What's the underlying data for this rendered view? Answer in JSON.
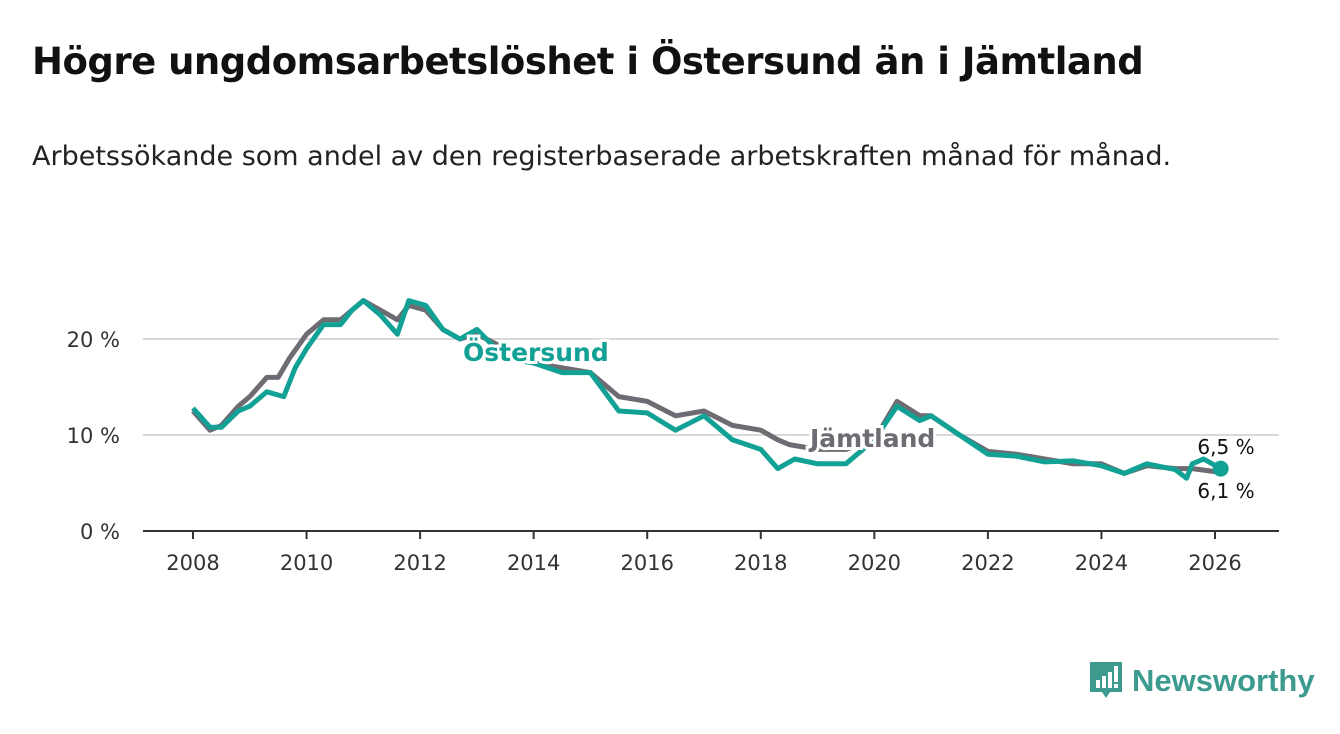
{
  "title": "Högre ungdomsarbetslöshet i Östersund än i Jämtland",
  "subtitle": "Arbetssökande som andel av den registerbaserade arbetskraften månad för månad.",
  "brand": "Newsworthy",
  "colors": {
    "ostersund": "#12a195",
    "jamtland": "#6e6b72",
    "grid": "#d9d9d9",
    "brand": "#3d9a8f"
  },
  "chart_data": {
    "type": "line",
    "title": "Högre ungdomsarbetslöshet i Östersund än i Jämtland",
    "xlabel": "",
    "ylabel": "",
    "xlim": [
      2007.5,
      2027.1
    ],
    "ylim": [
      0,
      25
    ],
    "x_ticks": [
      2008,
      2010,
      2012,
      2014,
      2016,
      2018,
      2020,
      2022,
      2024,
      2026
    ],
    "x_tick_labels": [
      "2008",
      "2010",
      "2012",
      "2014",
      "2016",
      "2018",
      "2020",
      "2022",
      "2024",
      "2026"
    ],
    "y_ticks": [
      0,
      10,
      20
    ],
    "y_tick_labels": [
      "0 %",
      "10 %",
      "20 %"
    ],
    "grid": true,
    "series": [
      {
        "name": "Jämtland",
        "end_label": "6,1 %",
        "x": [
          2008.0,
          2008.3,
          2008.5,
          2008.8,
          2009.0,
          2009.3,
          2009.5,
          2009.7,
          2010.0,
          2010.3,
          2010.6,
          2010.8,
          2011.0,
          2011.3,
          2011.6,
          2011.8,
          2012.1,
          2012.4,
          2012.7,
          2013.0,
          2013.5,
          2014.0,
          2014.5,
          2015.0,
          2015.5,
          2016.0,
          2016.5,
          2017.0,
          2017.5,
          2018.0,
          2018.3,
          2018.5,
          2019.0,
          2019.5,
          2020.0,
          2020.4,
          2020.8,
          2021.0,
          2021.5,
          2022.0,
          2022.5,
          2023.0,
          2023.5,
          2024.0,
          2024.4,
          2024.8,
          2025.3,
          2025.6,
          2026.1
        ],
        "values": [
          12.5,
          10.5,
          11,
          13,
          14,
          16,
          16,
          18,
          20.5,
          22,
          22,
          23,
          24,
          23,
          22,
          23.5,
          23,
          21,
          20,
          20.5,
          19,
          17.5,
          17,
          16.5,
          14,
          13.5,
          12,
          12.5,
          11,
          10.5,
          9.5,
          9,
          8.5,
          8.5,
          9.5,
          13.5,
          12,
          12,
          10,
          8.3,
          8,
          7.5,
          7,
          7,
          6,
          6.8,
          6.5,
          6.5,
          6.1
        ]
      },
      {
        "name": "Östersund",
        "end_label": "6,5 %",
        "x": [
          2008.0,
          2008.3,
          2008.5,
          2008.8,
          2009.0,
          2009.3,
          2009.6,
          2009.8,
          2010.0,
          2010.3,
          2010.6,
          2010.8,
          2011.0,
          2011.3,
          2011.6,
          2011.8,
          2012.1,
          2012.4,
          2012.7,
          2013.0,
          2013.5,
          2014.0,
          2014.5,
          2015.0,
          2015.5,
          2016.0,
          2016.5,
          2017.0,
          2017.5,
          2018.0,
          2018.3,
          2018.6,
          2019.0,
          2019.5,
          2020.0,
          2020.4,
          2020.8,
          2021.0,
          2021.5,
          2022.0,
          2022.5,
          2023.0,
          2023.5,
          2024.0,
          2024.4,
          2024.8,
          2025.3,
          2025.5,
          2025.6,
          2025.8,
          2026.1
        ],
        "values": [
          12.8,
          10.8,
          10.8,
          12.5,
          13,
          14.5,
          14,
          17,
          19,
          21.5,
          21.5,
          23,
          24,
          22.5,
          20.5,
          24,
          23.5,
          21,
          20,
          21,
          18,
          17.5,
          16.5,
          16.5,
          12.5,
          12.3,
          10.5,
          12,
          9.5,
          8.5,
          6.5,
          7.5,
          7,
          7,
          9.5,
          13,
          11.5,
          12,
          10,
          8,
          7.8,
          7.2,
          7.3,
          6.8,
          6,
          7,
          6.4,
          5.5,
          7,
          7.5,
          6.5
        ]
      }
    ]
  }
}
